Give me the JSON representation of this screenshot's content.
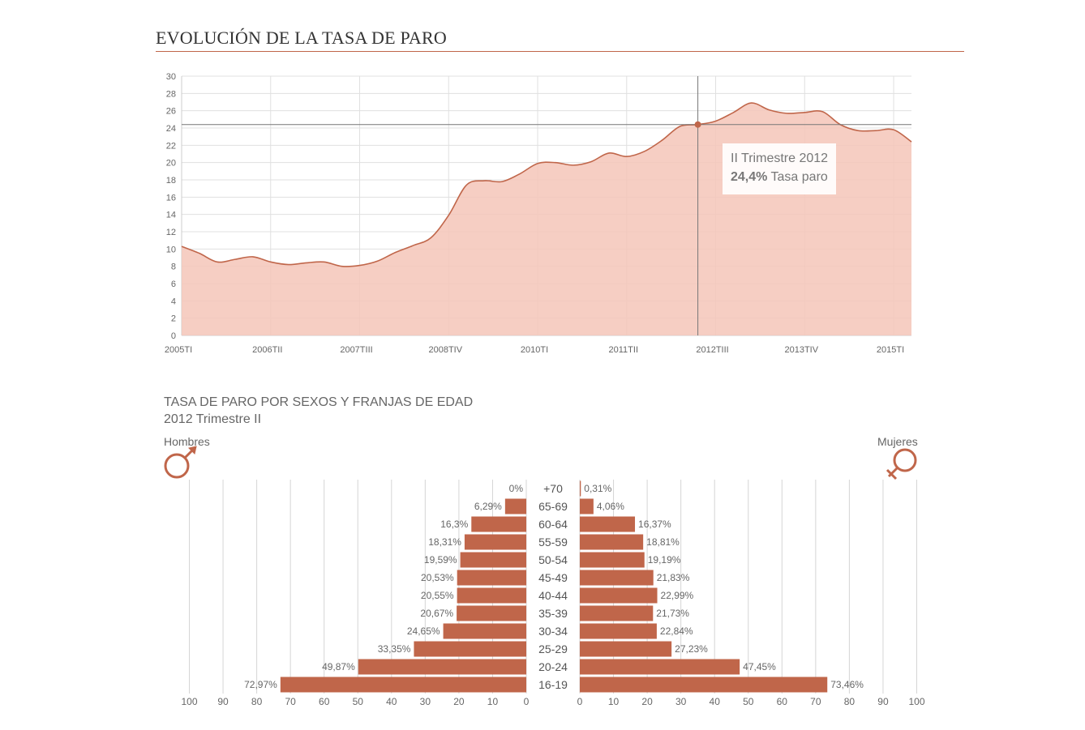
{
  "header": {
    "title": "EVOLUCIÓN DE LA TASA DE PARO"
  },
  "colors": {
    "accent": "#c0664a",
    "area_fill": "#f5c6b8",
    "grid": "#e0e0e0",
    "bar": "#c0664a"
  },
  "chart_data": [
    {
      "type": "area",
      "title": "EVOLUCIÓN DE LA TASA DE PARO",
      "ylim": [
        0,
        30
      ],
      "yticks": [
        0,
        2,
        4,
        6,
        8,
        10,
        12,
        14,
        16,
        18,
        20,
        22,
        24,
        26,
        28,
        30
      ],
      "xtick_labels": [
        "2005TI",
        "2006TII",
        "2007TIII",
        "2008TIV",
        "2010TI",
        "2011TII",
        "2012TIII",
        "2013TIV",
        "2015TI"
      ],
      "grid": true,
      "series": [
        {
          "values": [
            10.3,
            9.5,
            8.5,
            8.8,
            9.1,
            8.5,
            8.2,
            8.4,
            8.5,
            8.0,
            8.1,
            8.6,
            9.6,
            10.4,
            11.3,
            13.9,
            17.4,
            17.9,
            17.8,
            18.7,
            19.9,
            20.0,
            19.7,
            20.1,
            21.1,
            20.7,
            21.3,
            22.6,
            24.2,
            24.4,
            24.8,
            25.8,
            26.9,
            26.1,
            25.7,
            25.8,
            25.9,
            24.4,
            23.7,
            23.7,
            23.8,
            22.4
          ]
        }
      ],
      "tooltip": {
        "period": "II Trimestre 2012",
        "value": "24,4%",
        "label": "Tasa paro",
        "index": 29
      }
    },
    {
      "type": "bar",
      "title": "TASA DE PARO POR SEXOS Y FRANJAS DE EDAD",
      "subtitle": "2012 Trimestre II",
      "categories": [
        "+70",
        "65-69",
        "60-64",
        "55-59",
        "50-54",
        "45-49",
        "40-44",
        "35-39",
        "30-34",
        "25-29",
        "20-24",
        "16-19"
      ],
      "series": [
        {
          "name": "Hombres",
          "values": [
            0,
            6.29,
            16.3,
            18.31,
            19.59,
            20.53,
            20.55,
            20.67,
            24.65,
            33.35,
            49.87,
            72.97
          ],
          "labels": [
            "0%",
            "6,29%",
            "16,3%",
            "18,31%",
            "19,59%",
            "20,53%",
            "20,55%",
            "20,67%",
            "24,65%",
            "33,35%",
            "49,87%",
            "72,97%"
          ]
        },
        {
          "name": "Mujeres",
          "values": [
            0.31,
            4.06,
            16.37,
            18.81,
            19.19,
            21.83,
            22.99,
            21.73,
            22.84,
            27.23,
            47.45,
            73.46
          ],
          "labels": [
            "0,31%",
            "4,06%",
            "16,37%",
            "18,81%",
            "19,19%",
            "21,83%",
            "22,99%",
            "21,73%",
            "22,84%",
            "27,23%",
            "47,45%",
            "73,46%"
          ]
        }
      ],
      "xlim": [
        0,
        100
      ],
      "xticks": [
        100,
        90,
        80,
        70,
        60,
        50,
        40,
        30,
        20,
        10,
        0
      ]
    }
  ]
}
